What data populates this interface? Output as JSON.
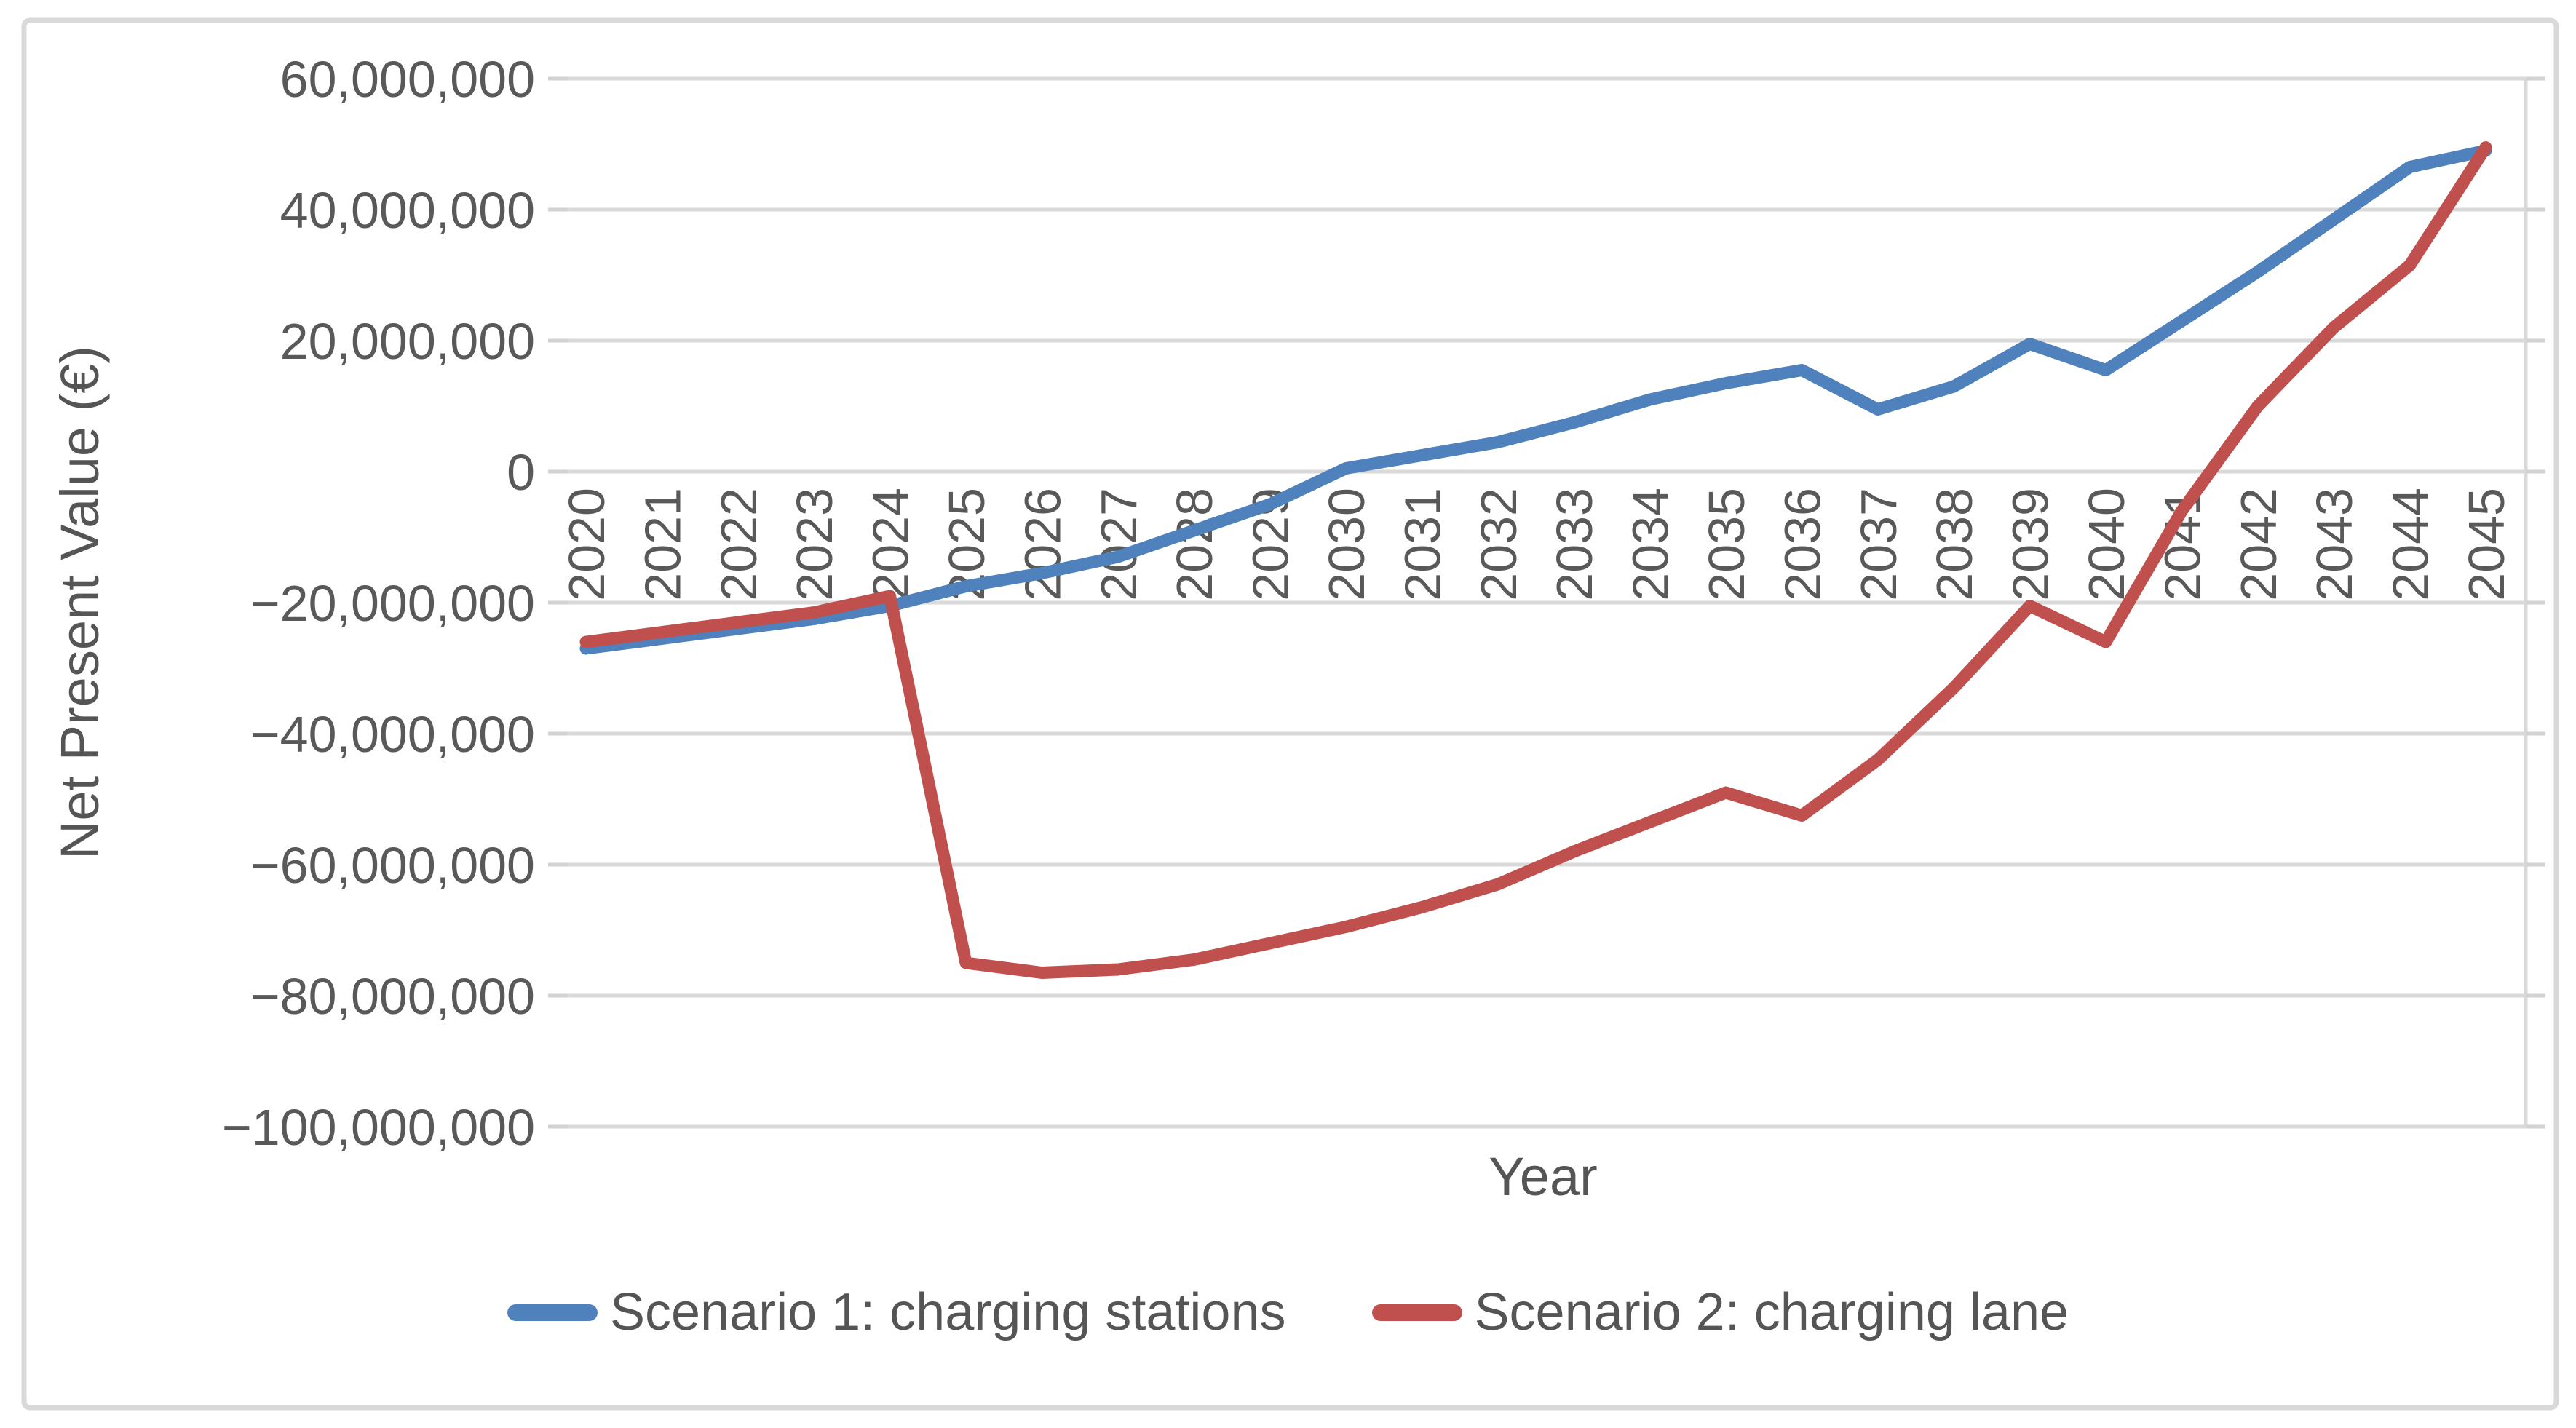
{
  "styles": {
    "background": "#ffffff",
    "border_color": "#d9d9d9",
    "gridline_color": "#d9d9d9",
    "text_color": "#595959",
    "scenario1_color": "#4F81BD",
    "scenario2_color": "#C0504D"
  },
  "chart_data": {
    "type": "line",
    "title": "",
    "xlabel": "Year",
    "ylabel": "Net Present Value (€)",
    "x": [
      2020,
      2021,
      2022,
      2023,
      2024,
      2025,
      2026,
      2027,
      2028,
      2029,
      2030,
      2031,
      2032,
      2033,
      2034,
      2035,
      2036,
      2037,
      2038,
      2039,
      2040,
      2041,
      2042,
      2043,
      2044,
      2045
    ],
    "ylim": [
      -100000000,
      60000000
    ],
    "ytick_step": 20000000,
    "grid": true,
    "legend_position": "bottom-center",
    "y_ticks": [
      {
        "value": 60000000,
        "label": "60,000,000"
      },
      {
        "value": 40000000,
        "label": "40,000,000"
      },
      {
        "value": 20000000,
        "label": "20,000,000"
      },
      {
        "value": 0,
        "label": "0"
      },
      {
        "value": -20000000,
        "label": "−20,000,000"
      },
      {
        "value": -40000000,
        "label": "−40,000,000"
      },
      {
        "value": -60000000,
        "label": "−60,000,000"
      },
      {
        "value": -80000000,
        "label": "−80,000,000"
      },
      {
        "value": -100000000,
        "label": "−100,000,000"
      }
    ],
    "series": [
      {
        "name": "Scenario 1: charging stations",
        "color": "#4F81BD",
        "values": [
          -27000000,
          -25500000,
          -24000000,
          -22500000,
          -20500000,
          -17500000,
          -15500000,
          -13000000,
          -9000000,
          -5000000,
          500000,
          2500000,
          4500000,
          7500000,
          11000000,
          13500000,
          15500000,
          9500000,
          13000000,
          19500000,
          15500000,
          23000000,
          30500000,
          38500000,
          46500000,
          49000000
        ]
      },
      {
        "name": "Scenario 2: charging lane",
        "color": "#C0504D",
        "values": [
          -26000000,
          -24500000,
          -23000000,
          -21500000,
          -19000000,
          -75000000,
          -76500000,
          -76000000,
          -74500000,
          -72000000,
          -69500000,
          -66500000,
          -63000000,
          -58000000,
          -53500000,
          -49000000,
          -52500000,
          -44000000,
          -33000000,
          -20500000,
          -26000000,
          -6000000,
          10000000,
          22000000,
          31500000,
          49500000
        ]
      }
    ]
  }
}
